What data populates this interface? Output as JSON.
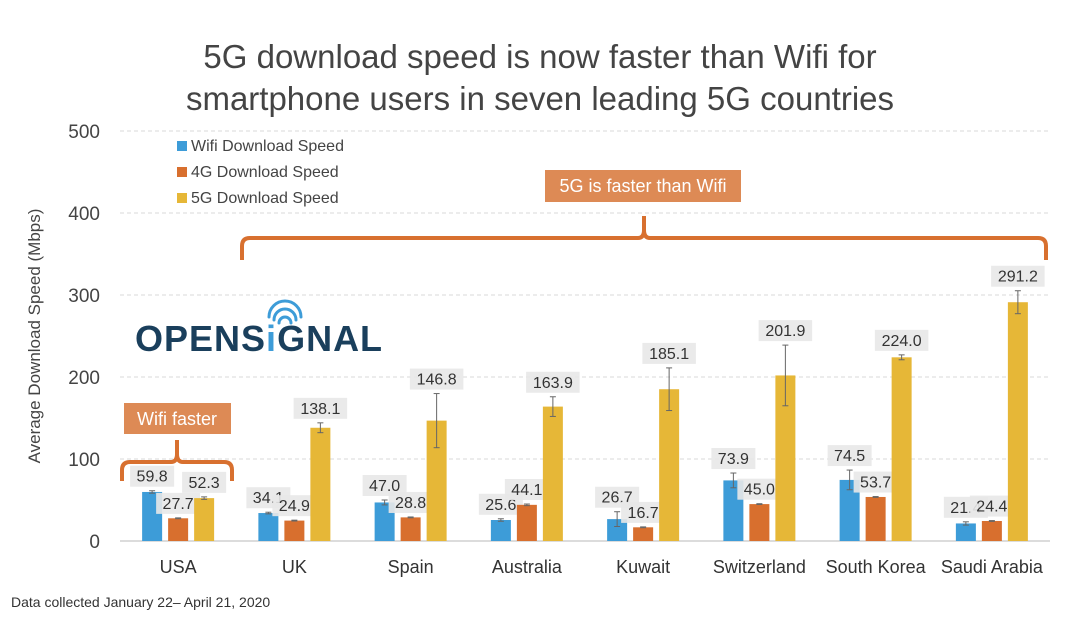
{
  "chart_data": {
    "type": "bar",
    "title": "5G download speed is now faster than Wifi for smartphone users in seven leading 5G countries",
    "title_lines": [
      "5G download speed is now faster than Wifi for",
      "smartphone users in seven leading 5G countries"
    ],
    "xlabel": "",
    "ylabel": "Average Download Speed (Mbps)",
    "ylim": [
      0,
      500
    ],
    "yticks": [
      0,
      100,
      200,
      300,
      400,
      500
    ],
    "grid": true,
    "legend_position": "top-left",
    "categories": [
      "USA",
      "UK",
      "Spain",
      "Australia",
      "Kuwait",
      "Switzerland",
      "South Korea",
      "Saudi Arabia"
    ],
    "series": [
      {
        "name": "Wifi Download Speed",
        "color": "#3d9cd8",
        "values": [
          59.8,
          34.1,
          47.0,
          25.6,
          26.7,
          73.9,
          74.5,
          21.4
        ],
        "error": [
          1.5,
          1,
          3,
          1.5,
          9,
          9,
          12,
          2
        ]
      },
      {
        "name": "4G Download Speed",
        "color": "#d86f2e",
        "values": [
          27.7,
          24.9,
          28.8,
          44.1,
          16.7,
          45.0,
          53.7,
          24.4
        ],
        "error": [
          0.5,
          0.5,
          0.5,
          1,
          0.5,
          0.5,
          0.5,
          0.5
        ]
      },
      {
        "name": "5G Download Speed",
        "color": "#e6b737",
        "values": [
          52.3,
          138.1,
          146.8,
          163.9,
          185.1,
          201.9,
          224.0,
          291.2
        ],
        "error": [
          1.5,
          6,
          33,
          12,
          26,
          37,
          3,
          14
        ]
      }
    ],
    "annotations": [
      {
        "text": "Wifi faster",
        "spans": [
          "USA"
        ]
      },
      {
        "text": "5G is faster than Wifi",
        "spans": [
          "UK",
          "Spain",
          "Australia",
          "Kuwait",
          "Switzerland",
          "South Korea",
          "Saudi Arabia"
        ]
      }
    ],
    "source_note": "Data collected January 22– April 21, 2020"
  },
  "logo": {
    "text_left": "OPENS",
    "text_i": "i",
    "text_right": "GNAL",
    "icon": "signal-waves-icon"
  },
  "colors": {
    "annotation": "#dd8a55",
    "brace": "#d8702f",
    "logo_dark": "#1a3f5c",
    "logo_accent": "#3d9cd8"
  }
}
